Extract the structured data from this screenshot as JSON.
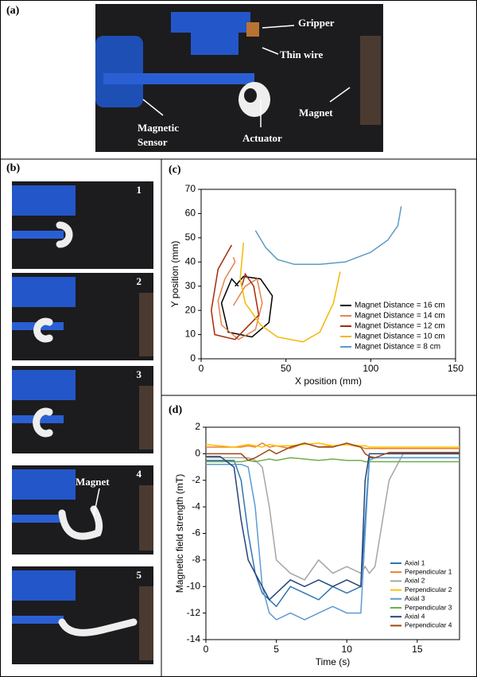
{
  "panel_labels": [
    "(a)",
    "(b)",
    "(c)",
    "(d)"
  ],
  "panel_a": {
    "labels": [
      "Gripper",
      "Thin wire",
      "Magnet",
      "Magnetic",
      "Sensor",
      "Actuator"
    ]
  },
  "panel_b": {
    "frames": [
      "1",
      "2",
      "3",
      "4",
      "5"
    ],
    "annotation": "Magnet"
  },
  "chart_data": [
    {
      "type": "line",
      "xlabel": "X position (mm)",
      "ylabel": "Y position (mm)",
      "xlim": [
        0,
        150
      ],
      "ylim": [
        0,
        70
      ],
      "xticks": [
        0,
        50,
        100,
        150
      ],
      "yticks": [
        0,
        10,
        20,
        30,
        40,
        50,
        60,
        70
      ],
      "series": [
        {
          "name": "Magnet Distance = 16 cm",
          "color": "#000000",
          "x": [
            20,
            25,
            35,
            42,
            40,
            30,
            16,
            12,
            18,
            22
          ],
          "values": [
            30,
            34,
            33,
            26,
            15,
            9,
            11,
            23,
            33,
            30
          ]
        },
        {
          "name": "Magnet Distance = 14 cm",
          "color": "#e8834a",
          "x": [
            19,
            26,
            33,
            36,
            32,
            22,
            12,
            10,
            14,
            20,
            19
          ],
          "values": [
            22,
            30,
            33,
            23,
            12,
            8,
            14,
            24,
            33,
            40,
            42
          ]
        },
        {
          "name": "Magnet Distance = 12 cm",
          "color": "#a52a0a",
          "x": [
            18,
            10,
            6,
            8,
            20,
            34,
            31,
            26,
            24
          ],
          "values": [
            47,
            37,
            20,
            10,
            8,
            18,
            30,
            35,
            30
          ]
        },
        {
          "name": "Magnet Distance = 10 cm",
          "color": "#f2b800",
          "x": [
            25,
            23,
            26,
            35,
            45,
            60,
            70,
            78,
            82
          ],
          "values": [
            48,
            33,
            23,
            14,
            9,
            7,
            11,
            23,
            36
          ]
        },
        {
          "name": "Magnet Distance = 8 cm",
          "color": "#5a9bc4",
          "x": [
            32,
            38,
            45,
            55,
            70,
            85,
            100,
            110,
            116,
            118
          ],
          "values": [
            53,
            46,
            41,
            39,
            39,
            40,
            44,
            49,
            55,
            63
          ]
        }
      ]
    },
    {
      "type": "line",
      "xlabel": "Time (s)",
      "ylabel": "Magnetic field strength (mT)",
      "xlim": [
        0,
        18
      ],
      "ylim": [
        -14,
        2
      ],
      "xticks": [
        0,
        5,
        10,
        15
      ],
      "yticks": [
        -14,
        -12,
        -10,
        -8,
        -6,
        -4,
        -2,
        0,
        2
      ],
      "x": [
        0,
        1,
        2,
        2.5,
        3,
        3.5,
        4,
        4.5,
        5,
        6,
        7,
        8,
        9,
        10,
        11,
        11.3,
        11.6,
        12,
        13,
        14,
        16,
        18
      ],
      "series": [
        {
          "name": "Axial 1",
          "color": "#2e75b6",
          "values": [
            -0.5,
            -0.5,
            -0.5,
            -2,
            -6,
            -9,
            -10.5,
            -11,
            -11.5,
            -10,
            -10.5,
            -11,
            -10,
            -10.5,
            -10,
            -5,
            -0.3,
            -0.3,
            -0.3,
            -0.3,
            -0.3,
            -0.3
          ]
        },
        {
          "name": "Perpendicular 1",
          "color": "#ed7d31",
          "values": [
            0.5,
            0.5,
            0.5,
            0.5,
            0.6,
            0.5,
            0.8,
            0.5,
            0.6,
            0.4,
            0.8,
            0.5,
            0.6,
            0.7,
            0.5,
            0.4,
            0.4,
            0.4,
            0.4,
            0.4,
            0.4,
            0.4
          ]
        },
        {
          "name": "Axial 2",
          "color": "#a5a5a5",
          "values": [
            -0.3,
            -0.3,
            -0.3,
            -0.3,
            -0.3,
            -0.5,
            -1,
            -4,
            -8,
            -9,
            -9.5,
            -8,
            -9,
            -8.5,
            -9,
            -8.5,
            -9,
            -8.5,
            -2,
            0,
            0,
            0
          ]
        },
        {
          "name": "Perpendicular 2",
          "color": "#ffc000",
          "values": [
            0.7,
            0.6,
            0.5,
            0.6,
            0.7,
            0.6,
            0.5,
            0.7,
            0.6,
            0.6,
            0.7,
            0.8,
            0.6,
            0.7,
            0.6,
            0.6,
            0.5,
            0.5,
            0.5,
            0.5,
            0.5,
            0.5
          ]
        },
        {
          "name": "Axial 3",
          "color": "#5b9bd5",
          "values": [
            -0.8,
            -0.8,
            -0.8,
            -0.8,
            -1,
            -4,
            -10,
            -12,
            -12.5,
            -12,
            -12.5,
            -12,
            -11.5,
            -12,
            -12,
            -6,
            -0.5,
            -0.3,
            -0.3,
            -0.3,
            -0.3,
            -0.3
          ]
        },
        {
          "name": "Perpendicular 3",
          "color": "#70ad47",
          "values": [
            -0.6,
            -0.6,
            -0.6,
            -0.6,
            -0.5,
            -0.6,
            -0.5,
            -0.4,
            -0.5,
            -0.3,
            -0.4,
            -0.5,
            -0.4,
            -0.5,
            -0.5,
            -0.6,
            -0.6,
            -0.6,
            -0.6,
            -0.6,
            -0.6,
            -0.6
          ]
        },
        {
          "name": "Axial 4",
          "color": "#264478",
          "values": [
            -0.2,
            -0.2,
            -1,
            -5,
            -8,
            -9,
            -10,
            -11,
            -10.5,
            -9.5,
            -10,
            -9.5,
            -10,
            -9.5,
            -10,
            -2,
            0,
            0,
            0,
            0,
            0,
            0
          ]
        },
        {
          "name": "Perpendicular 4",
          "color": "#9e480e",
          "values": [
            0,
            0,
            0,
            0,
            -0.5,
            -0.3,
            0,
            0.3,
            0,
            0.5,
            0.8,
            0.5,
            0.5,
            0.8,
            0.5,
            0,
            -0.2,
            -0.3,
            0.1,
            0.1,
            0.1,
            0.1
          ]
        }
      ]
    }
  ]
}
